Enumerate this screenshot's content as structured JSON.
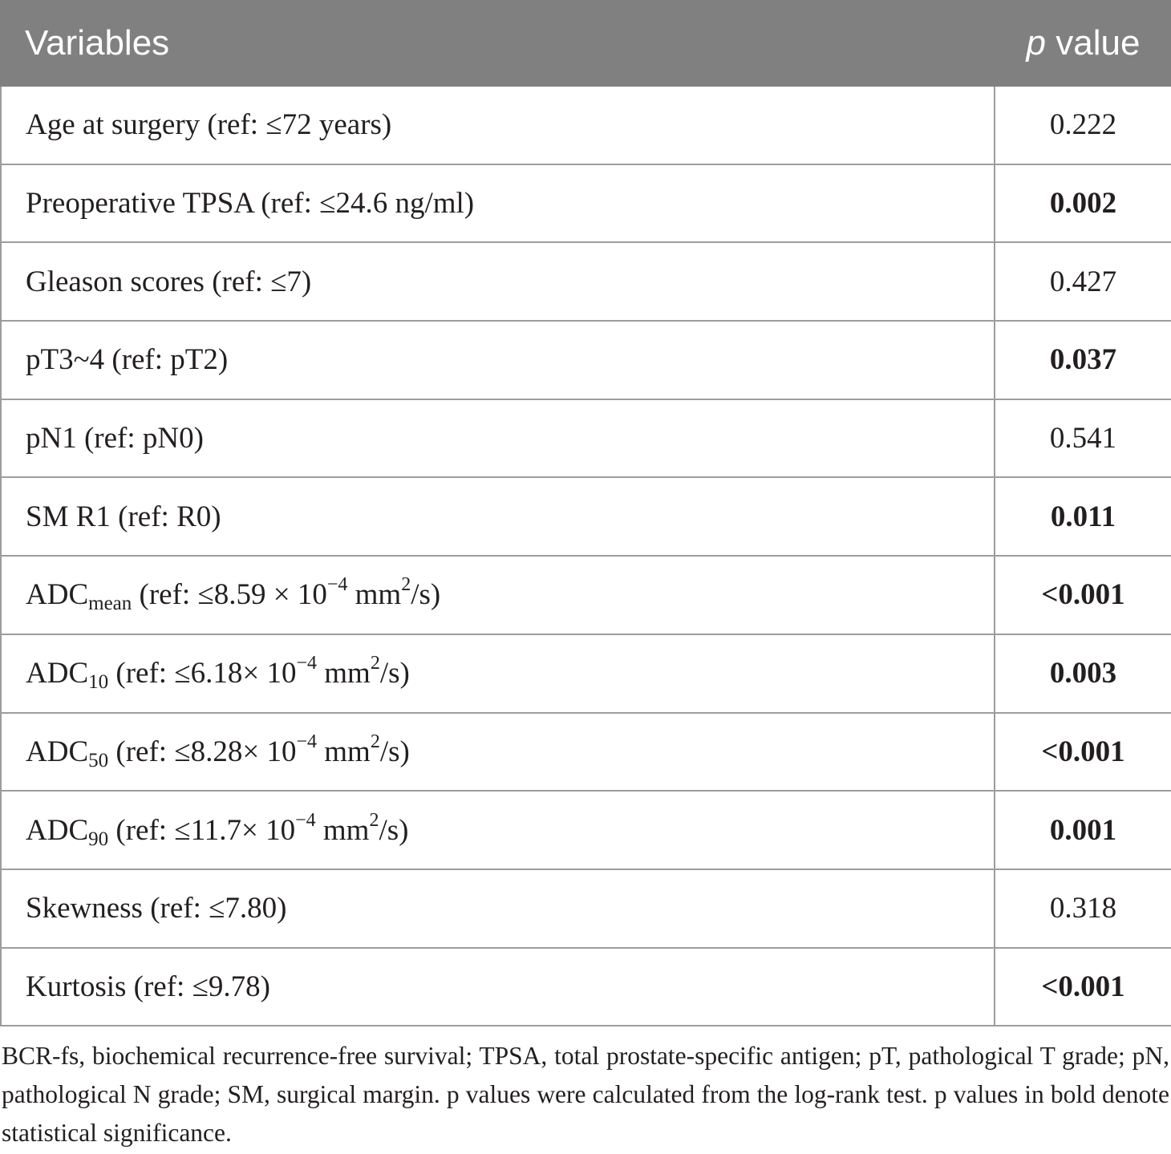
{
  "table": {
    "headers": {
      "variables": "Variables",
      "p_italic": "p",
      "p_rest": " value"
    },
    "rows": [
      {
        "base": "Age at surgery (ref: ≤72 years)",
        "p": "0.222",
        "bold": false
      },
      {
        "base": "Preoperative TPSA (ref: ≤24.6 ng/ml)",
        "p": "0.002",
        "bold": true
      },
      {
        "base": "Gleason scores (ref: ≤7)",
        "p": "0.427",
        "bold": false
      },
      {
        "base": "pT3~4 (ref: pT2)",
        "p": "0.037",
        "bold": true
      },
      {
        "base": "pN1 (ref: pN0)",
        "p": "0.541",
        "bold": false
      },
      {
        "base": "SM R1 (ref: R0)",
        "p": "0.011",
        "bold": true
      },
      {
        "base": "ADC",
        "sub": "mean",
        "mid": " (ref: ≤8.59 × 10",
        "sup": "−4",
        "mid2": " mm",
        "sup2": "2",
        "tail": "/s)",
        "p": "<0.001",
        "bold": true
      },
      {
        "base": "ADC",
        "sub": "10",
        "mid": " (ref: ≤6.18× 10",
        "sup": "−4",
        "mid2": " mm",
        "sup2": "2",
        "tail": "/s)",
        "p": "0.003",
        "bold": true
      },
      {
        "base": "ADC",
        "sub": "50",
        "mid": " (ref: ≤8.28× 10",
        "sup": "−4",
        "mid2": " mm",
        "sup2": "2",
        "tail": "/s)",
        "p": "<0.001",
        "bold": true
      },
      {
        "base": "ADC",
        "sub": "90",
        "mid": " (ref: ≤11.7× 10",
        "sup": "−4",
        "mid2": " mm",
        "sup2": "2",
        "tail": "/s)",
        "p": "0.001",
        "bold": true
      },
      {
        "base": "Skewness (ref: ≤7.80)",
        "p": "0.318",
        "bold": false
      },
      {
        "base": "Kurtosis (ref: ≤9.78)",
        "p": "<0.001",
        "bold": true
      }
    ]
  },
  "footnote": "BCR-fs, biochemical recurrence-free survival; TPSA, total prostate-specific antigen; pT, pathological T grade; pN, pathological N grade; SM, surgical margin. p values were calculated from the log-rank test. p values in bold denote statistical significance."
}
